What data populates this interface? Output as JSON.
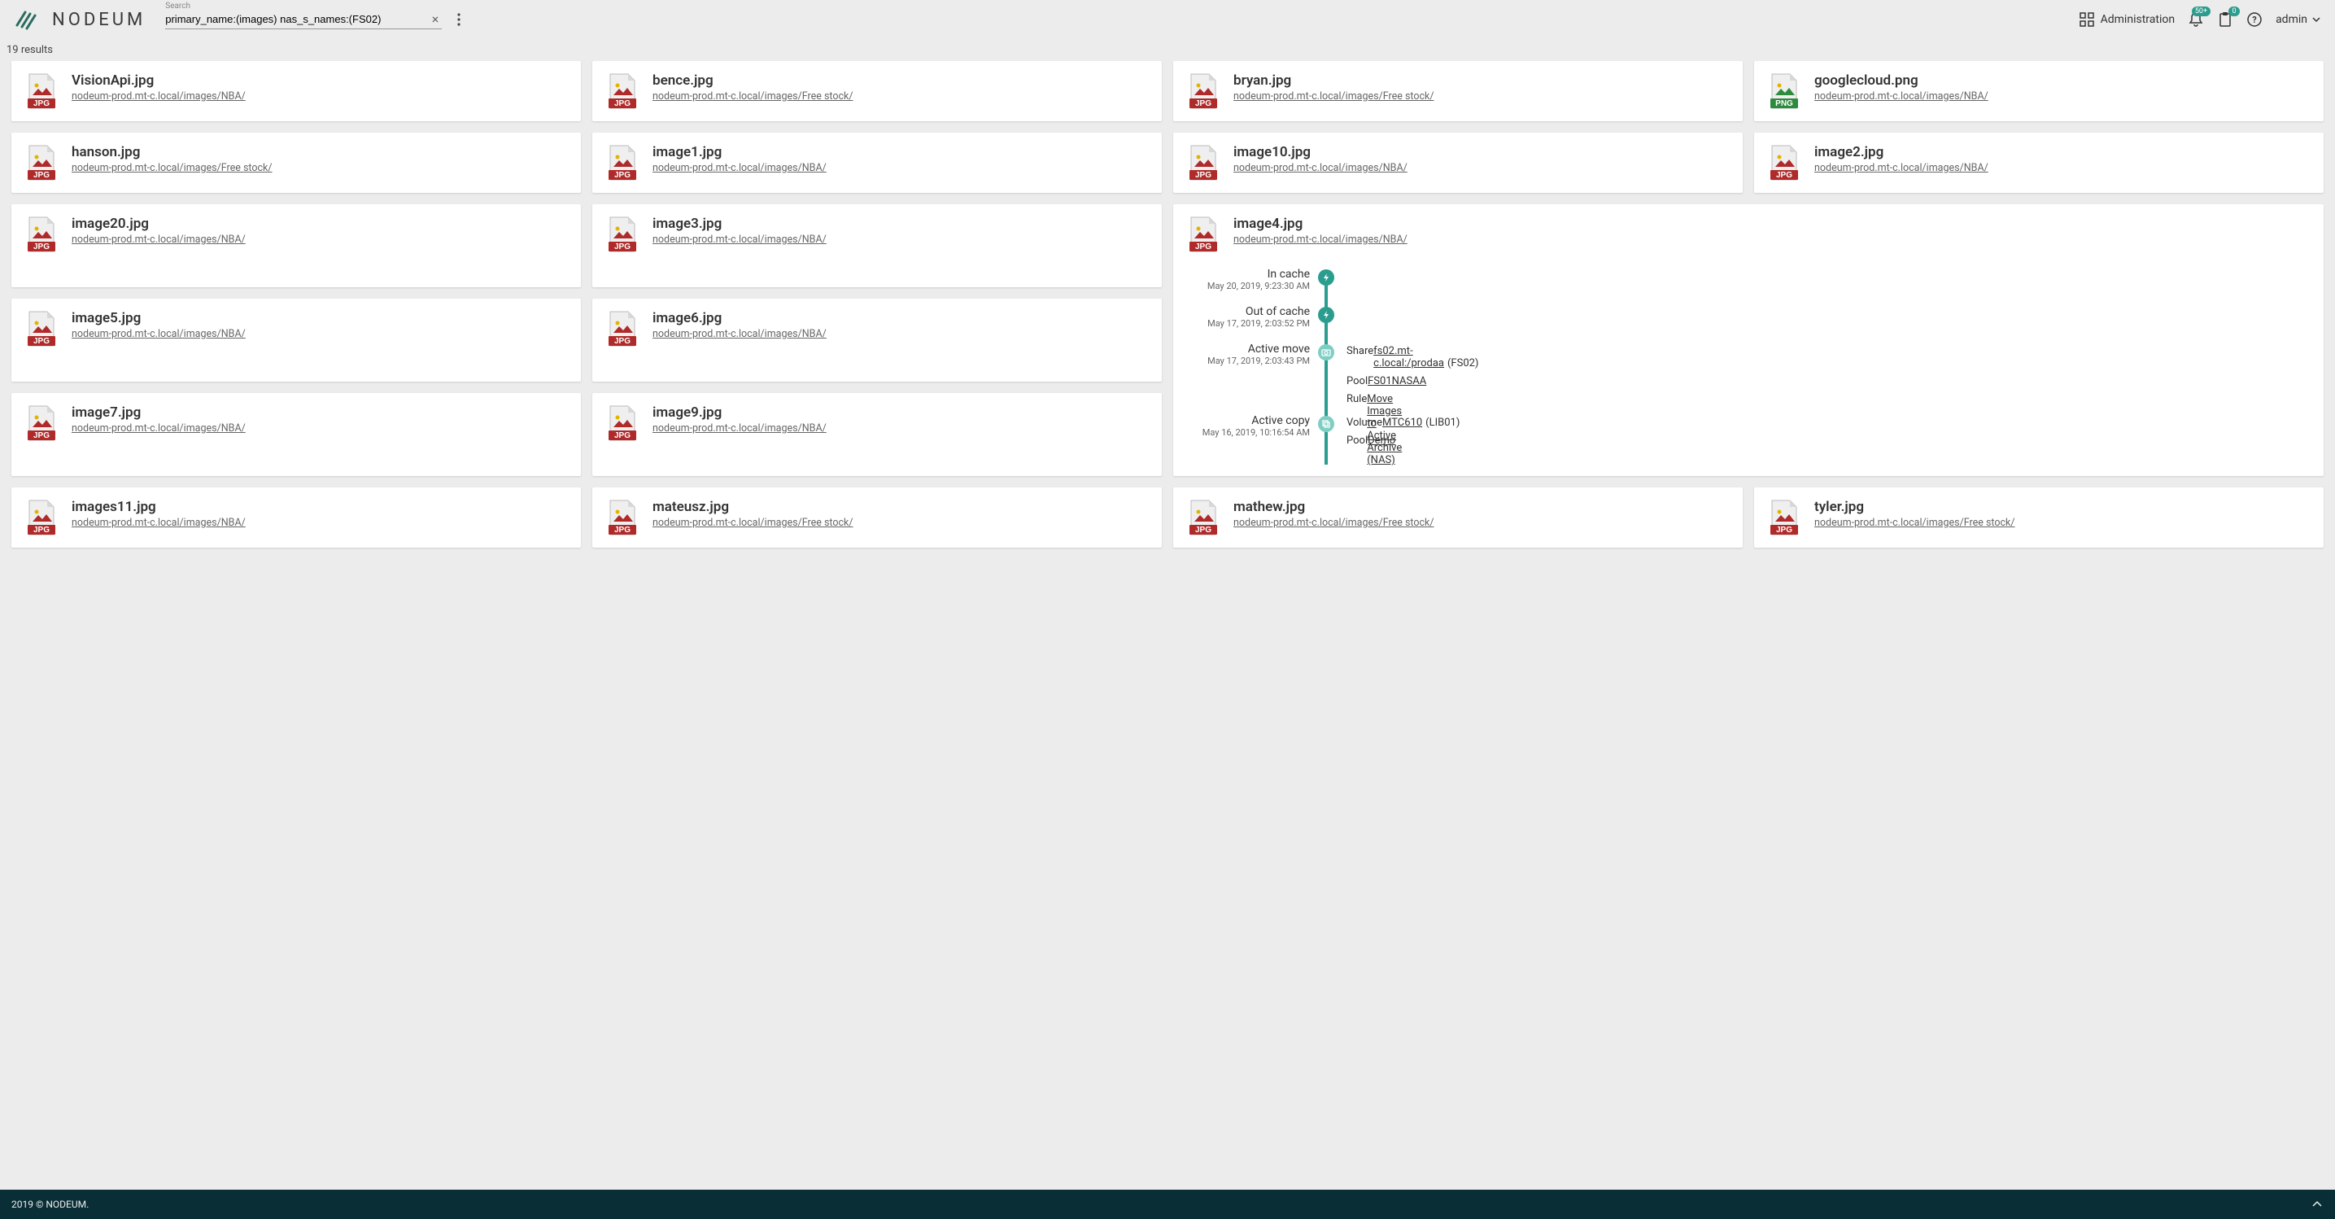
{
  "header": {
    "brand": "NODEUM",
    "search_label": "Search",
    "search_value": "primary_name:(images) nas_s_names:(FS02)",
    "admin_label": "Administration",
    "bell_badge": "50+",
    "clipboard_badge": "0",
    "user": "admin"
  },
  "results_count": "19 results",
  "row1": [
    {
      "name": "VisionApi.jpg",
      "path": "nodeum-prod.mt-c.local/images/NBA/",
      "type": "jpg"
    },
    {
      "name": "bence.jpg",
      "path": "nodeum-prod.mt-c.local/images/Free stock/",
      "type": "jpg"
    },
    {
      "name": "bryan.jpg",
      "path": "nodeum-prod.mt-c.local/images/Free stock/",
      "type": "jpg"
    },
    {
      "name": "googlecloud.png",
      "path": "nodeum-prod.mt-c.local/images/NBA/",
      "type": "png"
    }
  ],
  "row2": [
    {
      "name": "hanson.jpg",
      "path": "nodeum-prod.mt-c.local/images/Free stock/",
      "type": "jpg"
    },
    {
      "name": "image1.jpg",
      "path": "nodeum-prod.mt-c.local/images/NBA/",
      "type": "jpg"
    },
    {
      "name": "image10.jpg",
      "path": "nodeum-prod.mt-c.local/images/NBA/",
      "type": "jpg"
    },
    {
      "name": "image2.jpg",
      "path": "nodeum-prod.mt-c.local/images/NBA/",
      "type": "jpg"
    }
  ],
  "row3a": [
    {
      "name": "image20.jpg",
      "path": "nodeum-prod.mt-c.local/images/NBA/",
      "type": "jpg"
    },
    {
      "name": "image3.jpg",
      "path": "nodeum-prod.mt-c.local/images/NBA/",
      "type": "jpg"
    }
  ],
  "row3b": [
    {
      "name": "image5.jpg",
      "path": "nodeum-prod.mt-c.local/images/NBA/",
      "type": "jpg"
    },
    {
      "name": "image6.jpg",
      "path": "nodeum-prod.mt-c.local/images/NBA/",
      "type": "jpg"
    }
  ],
  "row3c": [
    {
      "name": "image7.jpg",
      "path": "nodeum-prod.mt-c.local/images/NBA/",
      "type": "jpg"
    },
    {
      "name": "image9.jpg",
      "path": "nodeum-prod.mt-c.local/images/NBA/",
      "type": "jpg"
    }
  ],
  "expanded": {
    "name": "image4.jpg",
    "path": "nodeum-prod.mt-c.local/images/NBA/",
    "type": "jpg",
    "events": {
      "e0": {
        "label": "In cache",
        "date": "May 20, 2019, 9:23:30 AM",
        "icon": "bolt",
        "light": false
      },
      "e1": {
        "label": "Out of cache",
        "date": "May 17, 2019, 2:03:52 PM",
        "icon": "bolt",
        "light": false
      },
      "e2": {
        "label": "Active move",
        "date": "May 17, 2019, 2:03:43 PM",
        "icon": "camera",
        "light": true,
        "details": [
          {
            "label": "Share",
            "value": "fs02.mt-c.local:/prodaa",
            "extra": "(FS02)"
          },
          {
            "label": "Pool",
            "value": "FS01NASAA"
          },
          {
            "label": "Rule",
            "value": "Move Images to Active Archive (NAS)"
          }
        ]
      },
      "e3": {
        "label": "Active copy",
        "date": "May 16, 2019, 10:16:54 AM",
        "icon": "copy",
        "light": true,
        "details": [
          {
            "label": "Volume",
            "value": "MTC610",
            "extra": "(LIB01)"
          },
          {
            "label": "Pool",
            "value": "Demo"
          }
        ]
      }
    }
  },
  "row4": [
    {
      "name": "images11.jpg",
      "path": "nodeum-prod.mt-c.local/images/NBA/",
      "type": "jpg"
    },
    {
      "name": "mateusz.jpg",
      "path": "nodeum-prod.mt-c.local/images/Free stock/",
      "type": "jpg"
    },
    {
      "name": "mathew.jpg",
      "path": "nodeum-prod.mt-c.local/images/Free stock/",
      "type": "jpg"
    },
    {
      "name": "tyler.jpg",
      "path": "nodeum-prod.mt-c.local/images/Free stock/",
      "type": "jpg"
    }
  ],
  "footer": "2019 © NODEUM."
}
